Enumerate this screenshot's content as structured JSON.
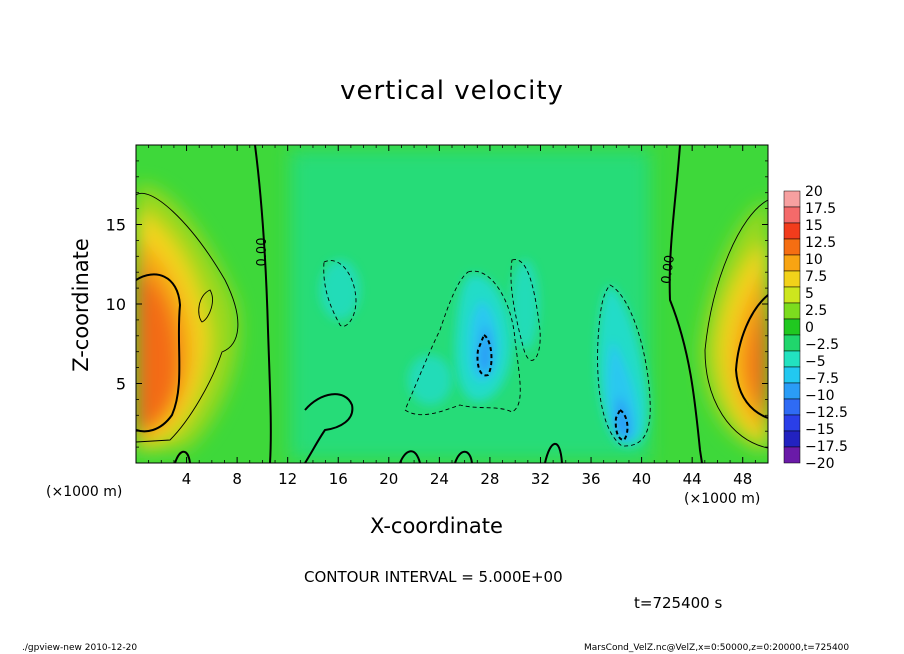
{
  "chart_data": {
    "type": "heatmap",
    "title": "vertical velocity",
    "xlabel": "X-coordinate",
    "ylabel": "Z-coordinate",
    "x_unit_left": "(×1000 m)",
    "x_unit_right": "(×1000 m)",
    "xlim": [
      0,
      50
    ],
    "ylim": [
      0,
      20
    ],
    "x_ticks": [
      4,
      8,
      12,
      16,
      20,
      24,
      28,
      32,
      36,
      40,
      44,
      48
    ],
    "y_ticks": [
      5,
      10,
      15
    ],
    "contour_interval_label": "CONTOUR INTERVAL = 5.000E+00",
    "zero_contour_labels": [
      "0.00",
      "0.00"
    ],
    "colorbar": {
      "labels": [
        "20",
        "17.5",
        "15",
        "12.5",
        "10",
        "7.5",
        "5",
        "2.5",
        "0",
        "−2.5",
        "−5",
        "−7.5",
        "−10",
        "−12.5",
        "−15",
        "−17.5",
        "−20"
      ],
      "colors": [
        "#f7a0a0",
        "#f46a6a",
        "#f23c1c",
        "#f56e12",
        "#f8a412",
        "#f2d21a",
        "#cde61e",
        "#7cdc1e",
        "#20c820",
        "#20d66c",
        "#22e2c0",
        "#22c8f0",
        "#2a9cf6",
        "#2f6bf4",
        "#2a3fe8",
        "#2222c0",
        "#6a1aa8"
      ]
    },
    "features": [
      {
        "name": "updraft-left",
        "x": 1.5,
        "z": 6,
        "peak": 15
      },
      {
        "name": "updraft-right",
        "x": 49,
        "z": 6.5,
        "peak": 14
      },
      {
        "name": "downdraft-center",
        "x": 27.5,
        "z": 7,
        "peak": -10
      },
      {
        "name": "downdraft-right",
        "x": 38.5,
        "z": 2.5,
        "peak": -9
      }
    ]
  },
  "time_label": "t=725400 s",
  "footer_left": "./gpview-new   2010-12-20",
  "footer_right": "MarsCond_VelZ.nc@VelZ,x=0:50000,z=0:20000,t=725400"
}
